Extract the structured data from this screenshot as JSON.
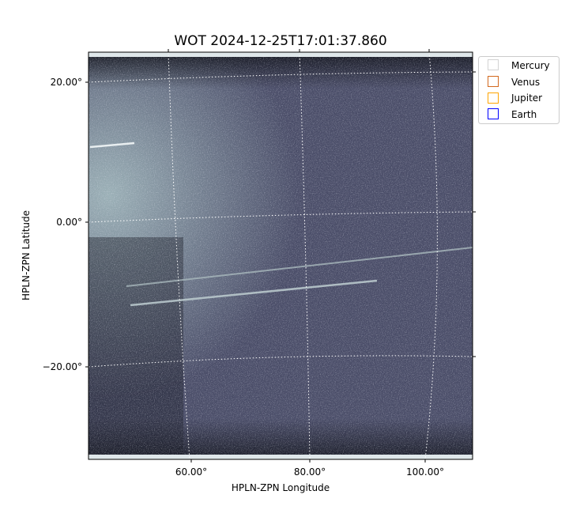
{
  "chart_data": {
    "type": "image",
    "title": "WOT 2024-12-25T17:01:37.860",
    "xlabel": "HPLN-ZPN Longitude",
    "ylabel": "HPLN-ZPN Latitude",
    "x_ticks": [
      "60.00°",
      "80.00°",
      "100.00°"
    ],
    "y_ticks": [
      "20.00°",
      "0.00°",
      "−20.00°"
    ],
    "grid": true,
    "colormap": "bone",
    "legend_placement": "upper-right-outside",
    "legend": [
      {
        "name": "Mercury",
        "color": "#d3d3d3"
      },
      {
        "name": "Venus",
        "color": "#d2691e"
      },
      {
        "name": "Jupiter",
        "color": "#ffa500"
      },
      {
        "name": "Earth",
        "color": "#0000ff"
      }
    ]
  }
}
